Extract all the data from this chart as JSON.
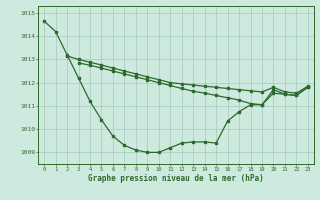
{
  "line1_x": [
    0,
    1,
    2,
    3,
    4,
    5,
    6,
    7,
    8,
    9,
    10,
    11,
    12,
    13,
    14,
    15,
    16,
    17,
    18,
    19,
    20,
    21,
    22,
    23
  ],
  "line1_y": [
    1014.65,
    1014.2,
    1013.2,
    1012.2,
    1011.2,
    1010.4,
    1009.7,
    1009.3,
    1009.1,
    1009.0,
    1009.0,
    1009.2,
    1009.4,
    1009.45,
    1009.45,
    1009.4,
    1010.35,
    1010.75,
    1011.05,
    1011.05,
    1011.55,
    1011.5,
    1011.45,
    1011.8
  ],
  "line2_x": [
    2,
    3,
    4,
    5,
    6,
    7,
    8,
    9,
    10,
    11,
    12,
    13,
    14,
    15,
    16,
    17,
    18,
    19,
    20,
    21,
    22,
    23
  ],
  "line2_y": [
    1013.15,
    1013.0,
    1012.88,
    1012.76,
    1012.63,
    1012.5,
    1012.38,
    1012.25,
    1012.13,
    1012.0,
    1011.95,
    1011.9,
    1011.85,
    1011.8,
    1011.75,
    1011.7,
    1011.65,
    1011.6,
    1011.8,
    1011.6,
    1011.55,
    1011.85
  ],
  "line3_x": [
    3,
    4,
    5,
    6,
    7,
    8,
    9,
    10,
    11,
    12,
    13,
    14,
    15,
    16,
    17,
    18,
    19,
    20,
    21,
    22,
    23
  ],
  "line3_y": [
    1012.85,
    1012.75,
    1012.63,
    1012.5,
    1012.38,
    1012.25,
    1012.13,
    1012.0,
    1011.88,
    1011.75,
    1011.63,
    1011.55,
    1011.45,
    1011.35,
    1011.25,
    1011.1,
    1011.05,
    1011.7,
    1011.5,
    1011.45,
    1011.82
  ],
  "line_color": "#2d6a2d",
  "bg_color": "#ceeadf",
  "grid_color": "#aacfbf",
  "xlabel": "Graphe pression niveau de la mer (hPa)",
  "ylim": [
    1008.5,
    1015.3
  ],
  "xlim": [
    -0.5,
    23.5
  ],
  "yticks": [
    1009,
    1010,
    1011,
    1012,
    1013,
    1014,
    1015
  ],
  "xticks": [
    0,
    1,
    2,
    3,
    4,
    5,
    6,
    7,
    8,
    9,
    10,
    11,
    12,
    13,
    14,
    15,
    16,
    17,
    18,
    19,
    20,
    21,
    22,
    23
  ]
}
